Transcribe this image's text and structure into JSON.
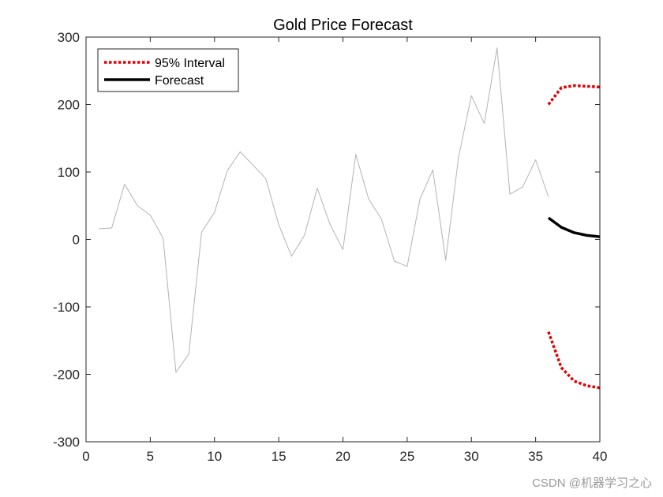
{
  "chart_data": {
    "type": "line",
    "title": "Gold Price Forecast",
    "xlabel": "",
    "ylabel": "",
    "xlim": [
      0,
      40
    ],
    "ylim": [
      -300,
      300
    ],
    "xticks": [
      0,
      5,
      10,
      15,
      20,
      25,
      30,
      35,
      40
    ],
    "yticks": [
      -300,
      -200,
      -100,
      0,
      100,
      200,
      300
    ],
    "xtick_labels": [
      "0",
      "5",
      "10",
      "15",
      "20",
      "25",
      "30",
      "35",
      "40"
    ],
    "ytick_labels": [
      "-300",
      "-200",
      "-100",
      "0",
      "100",
      "200",
      "300"
    ],
    "grid": false,
    "legend_position": "top-left",
    "legend": [
      {
        "label": "95% Interval",
        "series": "interval_upper"
      },
      {
        "label": "Forecast",
        "series": "forecast"
      }
    ],
    "series": [
      {
        "name": "observed",
        "color": "#b3b3b3",
        "style": "solid",
        "x": [
          1,
          2,
          3,
          4,
          5,
          6,
          7,
          8,
          9,
          10,
          11,
          12,
          13,
          14,
          15,
          16,
          17,
          18,
          19,
          20,
          21,
          22,
          23,
          24,
          25,
          26,
          27,
          28,
          29,
          30,
          31,
          32,
          33,
          34,
          35,
          36
        ],
        "values": [
          16,
          17,
          82,
          50,
          36,
          2,
          -197,
          -170,
          11,
          40,
          102,
          130,
          110,
          90,
          22,
          -25,
          6,
          76,
          22,
          -15,
          126,
          60,
          30,
          -32,
          -40,
          60,
          103,
          -31,
          122,
          213,
          172,
          284,
          67,
          78,
          118,
          63
        ]
      },
      {
        "name": "interval_upper",
        "color": "#e00000",
        "style": "dotted",
        "x": [
          36,
          37,
          38,
          39,
          40
        ],
        "values": [
          200,
          225,
          228,
          227,
          226
        ]
      },
      {
        "name": "interval_lower",
        "color": "#e00000",
        "style": "dotted",
        "x": [
          36,
          37,
          38,
          39,
          40
        ],
        "values": [
          -137,
          -190,
          -210,
          -217,
          -220
        ]
      },
      {
        "name": "forecast",
        "color": "#000000",
        "style": "solid",
        "x": [
          36,
          37,
          38,
          39,
          40
        ],
        "values": [
          32,
          18,
          10,
          6,
          4
        ]
      }
    ]
  },
  "watermark": "CSDN @机器学习之心"
}
